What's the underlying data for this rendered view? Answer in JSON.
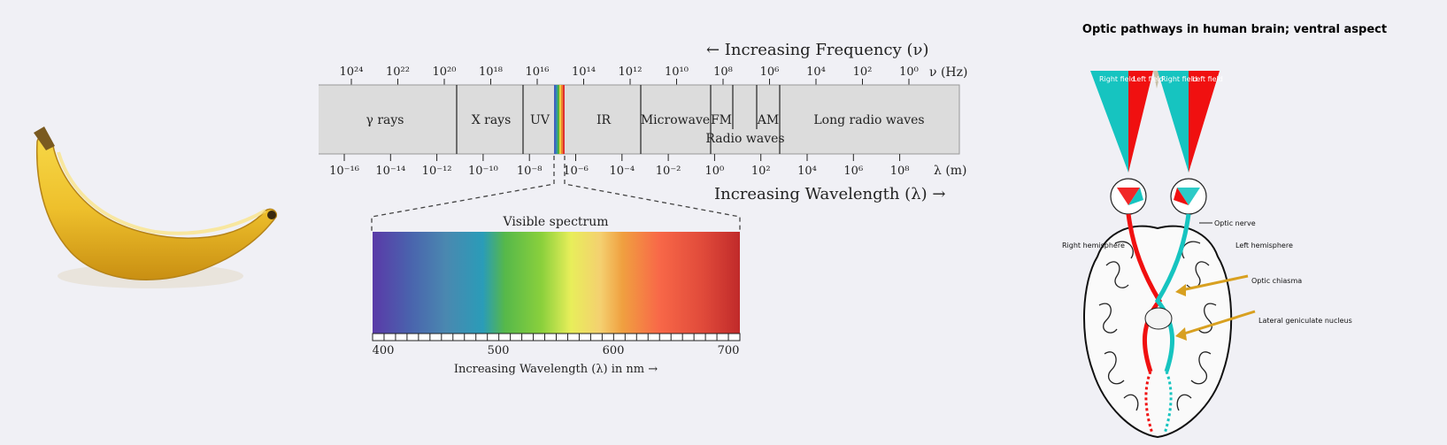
{
  "spectrum": {
    "frequency_label": "← Increasing Frequency (ν)",
    "frequency_unit": "ν (Hz)",
    "frequency_ticks": [
      "10²⁴",
      "10²²",
      "10²⁰",
      "10¹⁸",
      "10¹⁶",
      "10¹⁴",
      "10¹²",
      "10¹⁰",
      "10⁸",
      "10⁶",
      "10⁴",
      "10²",
      "10⁰"
    ],
    "wavelength_unit": "λ (m)",
    "wavelength_ticks": [
      "10⁻¹⁶",
      "10⁻¹⁴",
      "10⁻¹²",
      "10⁻¹⁰",
      "10⁻⁸",
      "10⁻⁶",
      "10⁻⁴",
      "10⁻²",
      "10⁰",
      "10²",
      "10⁴",
      "10⁶",
      "10⁸"
    ],
    "wavelength_label": "Increasing Wavelength (λ) →",
    "bands": {
      "gamma": "γ rays",
      "xray": "X rays",
      "uv": "UV",
      "ir": "IR",
      "microwave": "Microwave",
      "fm": "FM",
      "am": "AM",
      "radio": "Radio waves",
      "long_radio": "Long radio waves"
    },
    "visible": {
      "title": "Visible spectrum",
      "ticks": [
        "400",
        "500",
        "600",
        "700"
      ],
      "axis_label": "Increasing Wavelength (λ) in nm →"
    }
  },
  "brain": {
    "title": "Optic pathways in human brain; ventral aspect",
    "right_field_1": "Right field",
    "left_field_1": "Left field",
    "right_field_2": "Right field",
    "left_field_2": "Left field",
    "optic_nerve": "Optic nerve",
    "right_hemisphere": "Right hemisphere",
    "left_hemisphere": "Left hemisphere",
    "optic_chiasma": "Optic chiasma",
    "lgn": "Lateral geniculate nucleus"
  }
}
